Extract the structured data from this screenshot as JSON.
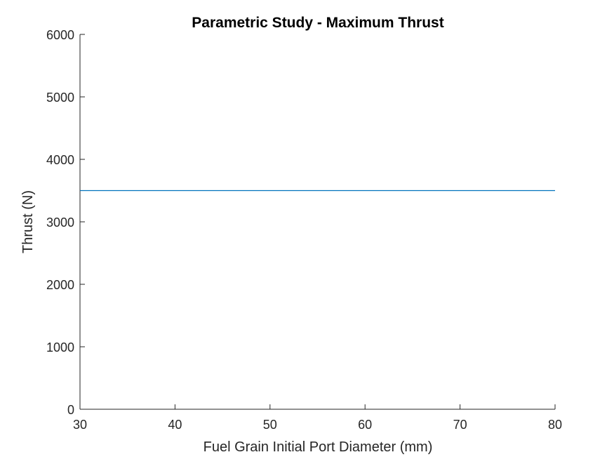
{
  "chart_data": {
    "type": "line",
    "title": "Parametric Study - Maximum Thrust",
    "xlabel": "Fuel Grain Initial Port Diameter (mm)",
    "ylabel": "Thrust (N)",
    "xlim": [
      30,
      80
    ],
    "ylim": [
      0,
      6000
    ],
    "x_ticks": [
      30,
      40,
      50,
      60,
      70,
      80
    ],
    "y_ticks": [
      0,
      1000,
      2000,
      3000,
      4000,
      5000,
      6000
    ],
    "grid": false,
    "series": [
      {
        "x": [
          30,
          80
        ],
        "y": [
          3500,
          3500
        ],
        "color": "#0072BD"
      }
    ]
  }
}
